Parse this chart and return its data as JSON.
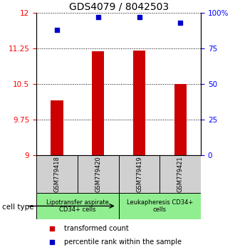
{
  "title": "GDS4079 / 8042503",
  "samples": [
    "GSM779418",
    "GSM779420",
    "GSM779419",
    "GSM779421"
  ],
  "transformed_counts": [
    10.15,
    11.18,
    11.2,
    10.5
  ],
  "percentile_ranks": [
    88,
    97,
    97,
    93
  ],
  "ylim_left": [
    9,
    12
  ],
  "ylim_right": [
    0,
    100
  ],
  "yticks_left": [
    9,
    9.75,
    10.5,
    11.25,
    12
  ],
  "ytick_labels_left": [
    "9",
    "9.75",
    "10.5",
    "11.25",
    "12"
  ],
  "yticks_right": [
    0,
    25,
    50,
    75,
    100
  ],
  "ytick_labels_right": [
    "0",
    "25",
    "50",
    "75",
    "100%"
  ],
  "bar_color": "#cc0000",
  "dot_color": "#0000cc",
  "bar_bottom": 9,
  "cell_type_groups": [
    {
      "label": "Lipotransfer aspirate\nCD34+ cells",
      "indices": [
        0,
        1
      ],
      "color": "#90ee90"
    },
    {
      "label": "Leukapheresis CD34+\ncells",
      "indices": [
        2,
        3
      ],
      "color": "#90ee90"
    }
  ],
  "sample_box_color": "#d0d0d0",
  "legend_entries": [
    {
      "color": "#cc0000",
      "label": "transformed count"
    },
    {
      "color": "#0000cc",
      "label": "percentile rank within the sample"
    }
  ],
  "cell_type_label": "cell type",
  "title_fontsize": 10,
  "tick_fontsize": 7.5,
  "sample_fontsize": 6,
  "group_fontsize": 6,
  "legend_fontsize": 7
}
